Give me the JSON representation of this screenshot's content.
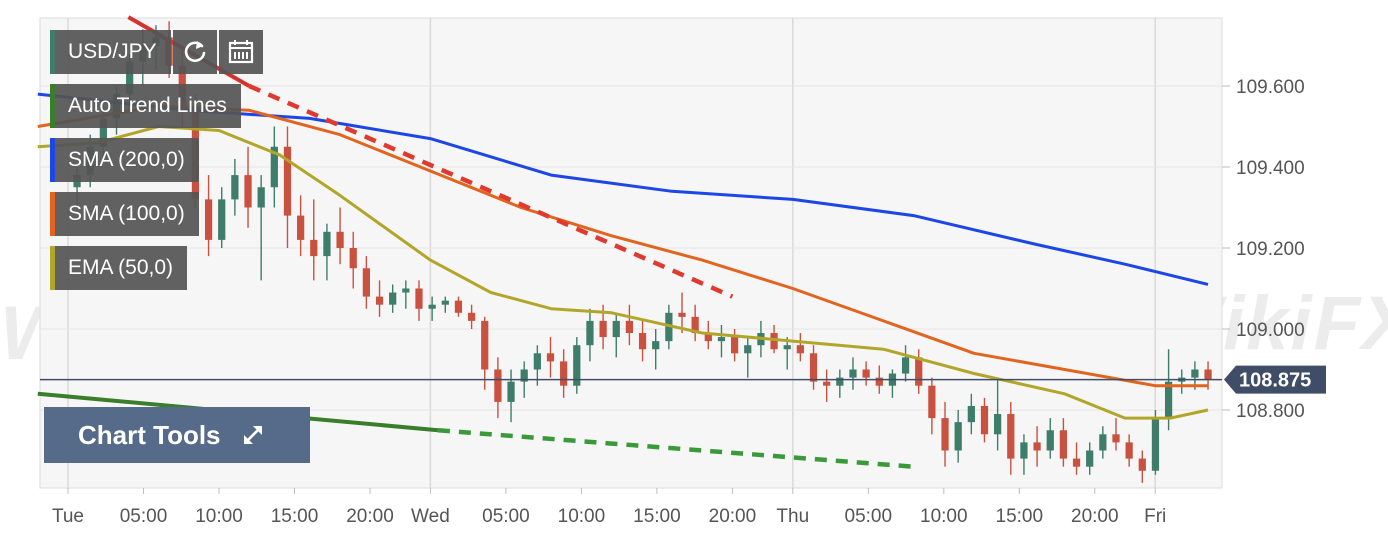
{
  "chart_data": {
    "type": "candlestick",
    "symbol": "USD/JPY",
    "y_ticks": [
      "109.600",
      "109.400",
      "109.200",
      "109.000",
      "108.800"
    ],
    "y_tick_values": [
      109.6,
      109.4,
      109.2,
      109.0,
      108.8
    ],
    "ylim": [
      108.62,
      109.77
    ],
    "x_ticks": [
      "Tue",
      "05:00",
      "10:00",
      "15:00",
      "20:00",
      "Wed",
      "05:00",
      "10:00",
      "15:00",
      "20:00",
      "Thu",
      "05:00",
      "10:00",
      "15:00",
      "20:00",
      "Fri"
    ],
    "x_tick_hours": [
      0,
      5,
      10,
      15,
      20,
      24,
      29,
      34,
      39,
      44,
      48,
      53,
      58,
      63,
      68,
      72
    ],
    "last_price": "108.875",
    "last_price_value": 108.875,
    "grid": true,
    "legend": [
      {
        "label": "Auto Trend Lines",
        "color": "#3a7d2a"
      },
      {
        "label": "SMA (200,0)",
        "color": "#1c46e6"
      },
      {
        "label": "SMA (100,0)",
        "color": "#e2641e"
      },
      {
        "label": "EMA (50,0)",
        "color": "#b2a62a"
      }
    ],
    "series": [
      {
        "name": "SMA (200,0)",
        "color": "#1c46e6",
        "x": [
          -2,
          8,
          16,
          24,
          32,
          40,
          48,
          56,
          64,
          70,
          75.5
        ],
        "values": [
          109.58,
          109.54,
          109.52,
          109.47,
          109.38,
          109.34,
          109.32,
          109.28,
          109.21,
          109.16,
          109.11
        ]
      },
      {
        "name": "SMA (100,0)",
        "color": "#e2641e",
        "x": [
          -2,
          6,
          12,
          18,
          24,
          30,
          36,
          42,
          48,
          54,
          60,
          66,
          72,
          75.5
        ],
        "values": [
          109.5,
          109.55,
          109.54,
          109.48,
          109.39,
          109.3,
          109.23,
          109.17,
          109.1,
          109.02,
          108.94,
          108.9,
          108.86,
          108.86
        ]
      },
      {
        "name": "EMA (50,0)",
        "color": "#b2a62a",
        "x": [
          -2,
          2,
          6,
          10,
          14,
          18,
          24,
          28,
          32,
          36,
          42,
          48,
          54,
          60,
          66,
          70,
          73,
          75.5
        ],
        "values": [
          109.45,
          109.46,
          109.5,
          109.49,
          109.43,
          109.33,
          109.17,
          109.09,
          109.05,
          109.04,
          108.99,
          108.97,
          108.95,
          108.89,
          108.84,
          108.78,
          108.78,
          108.8
        ]
      }
    ],
    "trend_lines": [
      {
        "color": "#d6322c",
        "style": "solid",
        "x": [
          4,
          12
        ],
        "values": [
          109.77,
          109.6
        ]
      },
      {
        "color": "#e03a30",
        "style": "dashed",
        "x": [
          12,
          44
        ],
        "values": [
          109.6,
          109.08
        ]
      },
      {
        "color": "#3a7d2a",
        "style": "solid",
        "x": [
          -2,
          24.5
        ],
        "values": [
          108.84,
          108.75
        ]
      },
      {
        "color": "#3a9a3a",
        "style": "dashed",
        "x": [
          24.5,
          56
        ],
        "values": [
          108.75,
          108.66
        ]
      }
    ],
    "candles_ohlc": [
      [
        109.35,
        109.4,
        109.3,
        109.38
      ],
      [
        109.38,
        109.48,
        109.35,
        109.45
      ],
      [
        109.45,
        109.55,
        109.42,
        109.52
      ],
      [
        109.52,
        109.6,
        109.48,
        109.58
      ],
      [
        109.58,
        109.68,
        109.55,
        109.66
      ],
      [
        109.66,
        109.74,
        109.6,
        109.7
      ],
      [
        109.7,
        109.75,
        109.64,
        109.72
      ],
      [
        109.72,
        109.76,
        109.62,
        109.65
      ],
      [
        109.65,
        109.7,
        109.5,
        109.55
      ],
      [
        109.55,
        109.58,
        109.3,
        109.32
      ],
      [
        109.32,
        109.38,
        109.18,
        109.22
      ],
      [
        109.22,
        109.35,
        109.2,
        109.32
      ],
      [
        109.32,
        109.42,
        109.28,
        109.38
      ],
      [
        109.38,
        109.45,
        109.25,
        109.3
      ],
      [
        109.3,
        109.38,
        109.12,
        109.35
      ],
      [
        109.35,
        109.5,
        109.3,
        109.45
      ],
      [
        109.45,
        109.5,
        109.2,
        109.28
      ],
      [
        109.28,
        109.33,
        109.18,
        109.22
      ],
      [
        109.22,
        109.32,
        109.12,
        109.18
      ],
      [
        109.18,
        109.26,
        109.12,
        109.24
      ],
      [
        109.24,
        109.3,
        109.16,
        109.2
      ],
      [
        109.2,
        109.24,
        109.1,
        109.15
      ],
      [
        109.15,
        109.18,
        109.05,
        109.08
      ],
      [
        109.08,
        109.12,
        109.03,
        109.06
      ],
      [
        109.06,
        109.11,
        109.04,
        109.09
      ],
      [
        109.09,
        109.12,
        109.05,
        109.1
      ],
      [
        109.1,
        109.12,
        109.02,
        109.05
      ],
      [
        109.05,
        109.08,
        109.02,
        109.06
      ],
      [
        109.06,
        109.08,
        109.04,
        109.07
      ],
      [
        109.07,
        109.08,
        109.03,
        109.04
      ],
      [
        109.04,
        109.06,
        109.0,
        109.02
      ],
      [
        109.02,
        109.03,
        108.85,
        108.9
      ],
      [
        108.9,
        108.93,
        108.78,
        108.82
      ],
      [
        108.82,
        108.9,
        108.77,
        108.87
      ],
      [
        108.87,
        108.92,
        108.83,
        108.9
      ],
      [
        108.9,
        108.96,
        108.86,
        108.94
      ],
      [
        108.94,
        108.98,
        108.88,
        108.92
      ],
      [
        108.92,
        108.95,
        108.83,
        108.86
      ],
      [
        108.86,
        108.98,
        108.84,
        108.96
      ],
      [
        108.96,
        109.05,
        108.92,
        109.02
      ],
      [
        109.02,
        109.06,
        108.95,
        108.98
      ],
      [
        108.98,
        109.04,
        108.93,
        109.02
      ],
      [
        109.02,
        109.06,
        108.96,
        108.99
      ],
      [
        108.99,
        109.02,
        108.92,
        108.95
      ],
      [
        108.95,
        109.0,
        108.9,
        108.97
      ],
      [
        108.97,
        109.06,
        108.95,
        109.04
      ],
      [
        109.04,
        109.09,
        108.99,
        109.03
      ],
      [
        109.03,
        109.06,
        108.97,
        108.99
      ],
      [
        108.99,
        109.02,
        108.95,
        108.97
      ],
      [
        108.97,
        109.01,
        108.93,
        108.98
      ],
      [
        108.98,
        109.0,
        108.92,
        108.94
      ],
      [
        108.94,
        108.98,
        108.88,
        108.96
      ],
      [
        108.96,
        109.02,
        108.93,
        108.99
      ],
      [
        108.99,
        109.01,
        108.94,
        108.95
      ],
      [
        108.95,
        108.98,
        108.9,
        108.96
      ],
      [
        108.96,
        108.99,
        108.92,
        108.94
      ],
      [
        108.94,
        108.96,
        108.85,
        108.87
      ],
      [
        108.87,
        108.9,
        108.82,
        108.86
      ],
      [
        108.86,
        108.9,
        108.83,
        108.88
      ],
      [
        108.88,
        108.93,
        108.85,
        108.9
      ],
      [
        108.9,
        108.92,
        108.86,
        108.88
      ],
      [
        108.88,
        108.91,
        108.84,
        108.86
      ],
      [
        108.86,
        108.9,
        108.83,
        108.89
      ],
      [
        108.89,
        108.96,
        108.87,
        108.93
      ],
      [
        108.93,
        108.95,
        108.84,
        108.86
      ],
      [
        108.86,
        108.88,
        108.74,
        108.78
      ],
      [
        108.78,
        108.82,
        108.66,
        108.7
      ],
      [
        108.7,
        108.8,
        108.67,
        108.77
      ],
      [
        108.77,
        108.84,
        108.74,
        108.81
      ],
      [
        108.81,
        108.83,
        108.72,
        108.74
      ],
      [
        108.74,
        108.88,
        108.7,
        108.79
      ],
      [
        108.79,
        108.82,
        108.64,
        108.68
      ],
      [
        108.68,
        108.74,
        108.64,
        108.72
      ],
      [
        108.72,
        108.76,
        108.66,
        108.7
      ],
      [
        108.7,
        108.78,
        108.68,
        108.75
      ],
      [
        108.75,
        108.78,
        108.66,
        108.68
      ],
      [
        108.68,
        108.72,
        108.64,
        108.66
      ],
      [
        108.66,
        108.72,
        108.64,
        108.7
      ],
      [
        108.7,
        108.76,
        108.68,
        108.74
      ],
      [
        108.74,
        108.78,
        108.7,
        108.72
      ],
      [
        108.72,
        108.74,
        108.66,
        108.68
      ],
      [
        108.68,
        108.7,
        108.62,
        108.65
      ],
      [
        108.65,
        108.8,
        108.64,
        108.78
      ],
      [
        108.78,
        108.95,
        108.75,
        108.87
      ],
      [
        108.87,
        108.9,
        108.84,
        108.88
      ],
      [
        108.88,
        108.92,
        108.85,
        108.9
      ],
      [
        108.9,
        108.92,
        108.85,
        108.875
      ]
    ]
  },
  "toolbar": {
    "symbol_label": "USD/JPY",
    "refresh_icon": "refresh-icon",
    "calendar_icon": "calendar-icon"
  },
  "legend_labels": {
    "auto_trend_lines": "Auto Trend Lines",
    "sma200": "SMA (200,0)",
    "sma100": "SMA (100,0)",
    "ema50": "EMA (50,0)"
  },
  "chart_tools": {
    "label": "Chart Tools",
    "icon": "expand-arrows-icon"
  },
  "watermark_text": "WikiFX",
  "colors": {
    "up": "#3e7d6a",
    "down": "#c9513f",
    "price_tag": "#3f4e66"
  }
}
